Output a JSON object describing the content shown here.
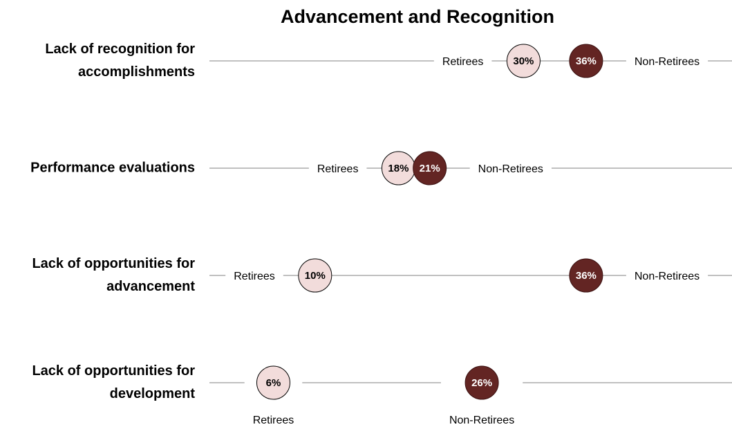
{
  "chart_data": {
    "type": "dot",
    "title": "Advancement and Recognition",
    "categories": [
      "Lack of recognition for accomplishments",
      "Performance evaluations",
      "Lack of opportunities for advancement",
      "Lack of opportunities for development"
    ],
    "xlim": [
      0,
      50
    ],
    "series": [
      {
        "name": "Retirees",
        "color": "#f2dcdb",
        "values": [
          30,
          18,
          10,
          6
        ],
        "value_labels": [
          "30%",
          "18%",
          "10%",
          "6%"
        ]
      },
      {
        "name": "Non-Retirees",
        "color": "#632523",
        "values": [
          36,
          21,
          36,
          26
        ],
        "value_labels": [
          "36%",
          "21%",
          "36%",
          "26%"
        ]
      }
    ]
  }
}
